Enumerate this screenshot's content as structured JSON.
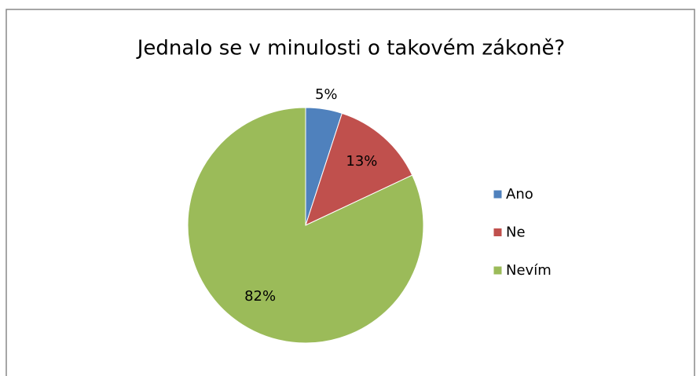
{
  "chart_data": {
    "type": "pie",
    "title": "Jednalo se v minulosti o takovém zákoně?",
    "categories": [
      "Ano",
      "Ne",
      "Nevím"
    ],
    "values": [
      5,
      13,
      82
    ],
    "value_labels": [
      "5%",
      "13%",
      "82%"
    ],
    "colors": [
      "#4f81bd",
      "#c0504d",
      "#9bbb59"
    ],
    "legend": "right"
  }
}
